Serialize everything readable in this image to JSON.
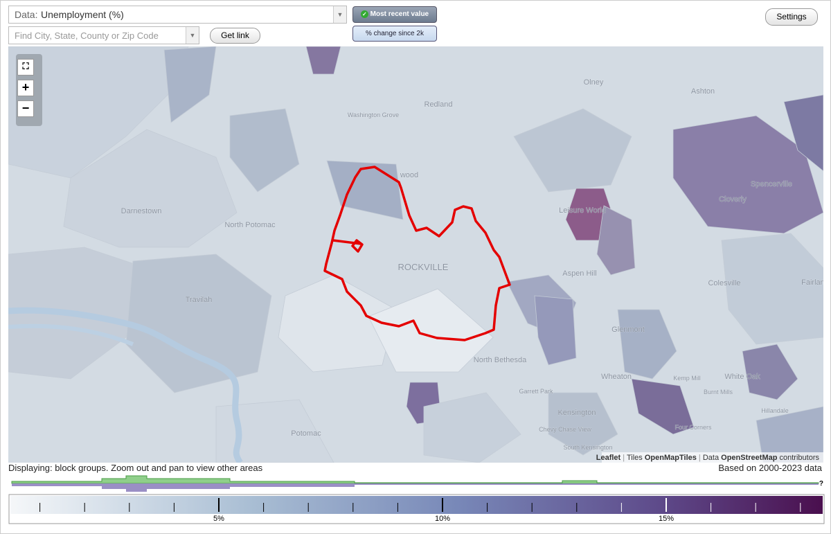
{
  "controls": {
    "data_label": "Data:",
    "data_value": "Unemployment (%)",
    "search_placeholder": "Find City, State, County or Zip Code",
    "get_link": "Get link",
    "most_recent": "Most recent value",
    "change": "% change since 2k",
    "settings": "Settings"
  },
  "map": {
    "labels": [
      "Olney",
      "Ashton",
      "Redland",
      "Washington Grove",
      "wood",
      "Darnestown",
      "North Potomac",
      "ROCKVILLE",
      "Travilah",
      "Leisure World",
      "Spencerville",
      "Cloverly",
      "Aspen Hill",
      "Colesville",
      "Fairland",
      "Glenmont",
      "North Bethesda",
      "Wheaton",
      "Kemp Mill",
      "White Oak",
      "Burnt Mills",
      "Hillandale",
      "Garrett Park",
      "Kensington",
      "Chevy Chase View",
      "Four Corners",
      "South Kensington",
      "Potomac"
    ],
    "attribution": {
      "leaflet": "Leaflet",
      "tiles": "Tiles",
      "tiles_link": "OpenMapTiles",
      "data": "Data",
      "data_link": "OpenStreetMap",
      "contributors": "contributors"
    }
  },
  "footer": {
    "displaying": "Displaying: block groups. Zoom out and pan to view other areas",
    "based_on": "Based on 2000-2023 data",
    "help": "?"
  },
  "legend": {
    "ticks": [
      "5%",
      "10%",
      "15%"
    ]
  }
}
